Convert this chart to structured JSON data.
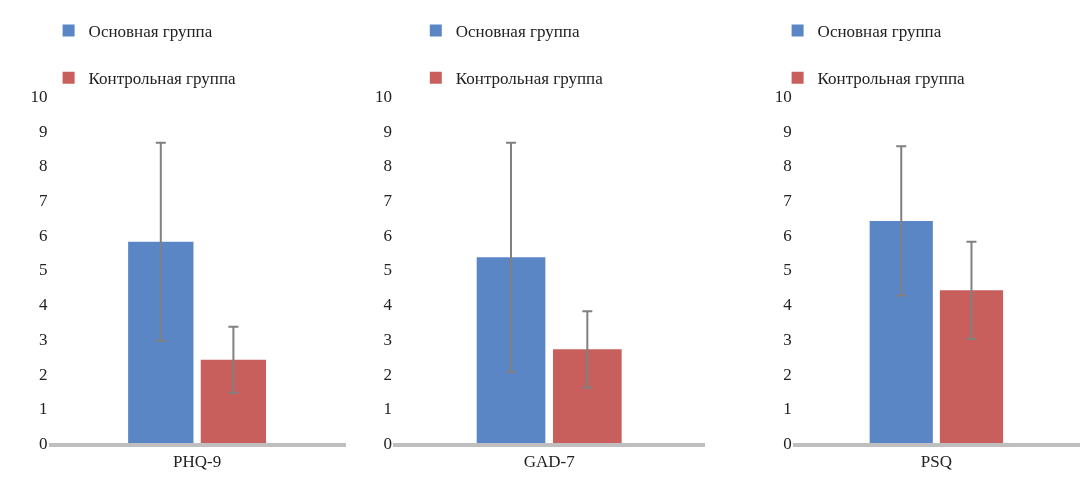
{
  "chart_data": [
    {
      "type": "bar",
      "categories": [
        "PHQ-9"
      ],
      "ylim": [
        0,
        10
      ],
      "yticks": [
        0,
        1,
        2,
        3,
        4,
        5,
        6,
        7,
        8,
        9,
        10
      ],
      "grid": false,
      "legend": "top left",
      "series": [
        {
          "name": "Основная группа",
          "color": "#5b86c5",
          "values": [
            5.8
          ],
          "errors": [
            2.85
          ]
        },
        {
          "name": "Контрольная группа",
          "color": "#c95f5c",
          "values": [
            2.4
          ],
          "errors": [
            0.95
          ]
        }
      ]
    },
    {
      "type": "bar",
      "categories": [
        "GAD-7"
      ],
      "ylim": [
        0,
        10
      ],
      "yticks": [
        0,
        1,
        2,
        3,
        4,
        5,
        6,
        7,
        8,
        9,
        10
      ],
      "grid": false,
      "legend": "top left",
      "series": [
        {
          "name": "Основная группа",
          "color": "#5b86c5",
          "values": [
            5.35
          ],
          "errors": [
            3.3
          ]
        },
        {
          "name": "Контрольная группа",
          "color": "#c95f5c",
          "values": [
            2.7
          ],
          "errors": [
            1.1
          ]
        }
      ]
    },
    {
      "type": "bar",
      "categories": [
        "PSQ"
      ],
      "ylim": [
        0,
        10
      ],
      "yticks": [
        0,
        1,
        2,
        3,
        4,
        5,
        6,
        7,
        8,
        9,
        10
      ],
      "grid": false,
      "legend": "top left",
      "series": [
        {
          "name": "Основная группа",
          "color": "#5b86c5",
          "values": [
            6.4
          ],
          "errors": [
            2.15
          ]
        },
        {
          "name": "Контрольная группа",
          "color": "#c95f5c",
          "values": [
            4.4
          ],
          "errors": [
            1.4
          ]
        }
      ]
    }
  ]
}
